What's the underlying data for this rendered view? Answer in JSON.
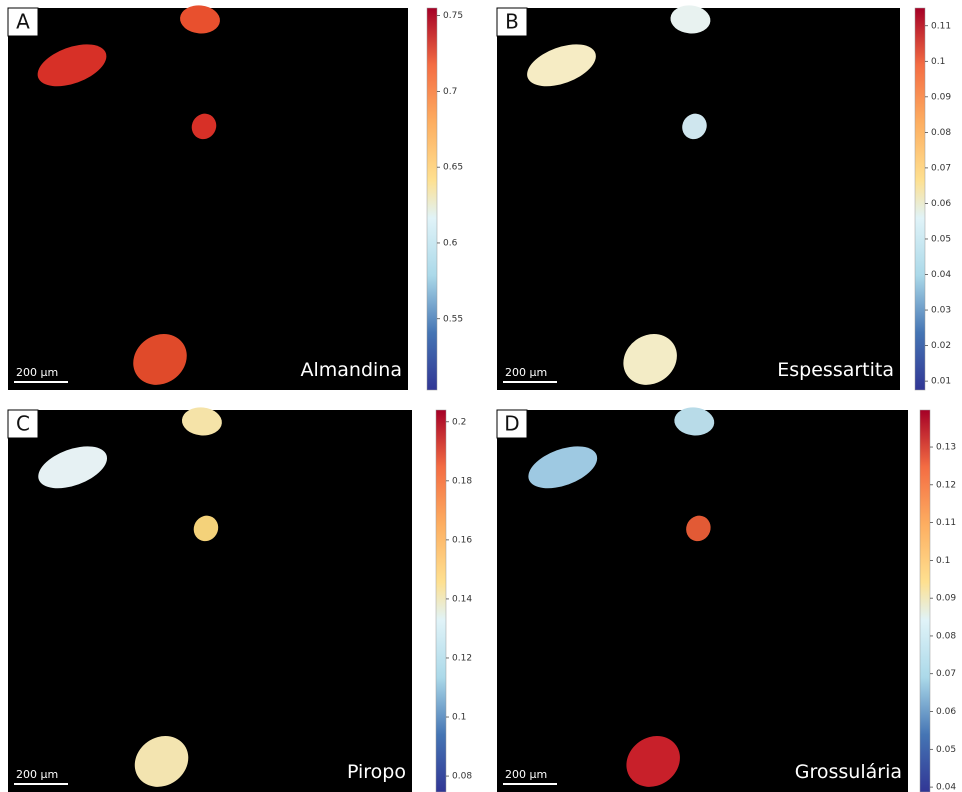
{
  "panels": [
    {
      "letter": "A",
      "mineral": "Almandina",
      "scale_bar": "200 µm",
      "colorbar": {
        "lim": [
          0.503,
          0.755
        ],
        "ticks": [
          0.55,
          0.6,
          0.65,
          0.7,
          0.75
        ]
      }
    },
    {
      "letter": "B",
      "mineral": "Espessartita",
      "scale_bar": "200 µm",
      "colorbar": {
        "lim": [
          0.0075,
          0.115
        ],
        "ticks": [
          0.01,
          0.02,
          0.03,
          0.04,
          0.05,
          0.06,
          0.07,
          0.08,
          0.09,
          0.1,
          0.11
        ]
      }
    },
    {
      "letter": "C",
      "mineral": "Piropo",
      "scale_bar": "200 µm",
      "colorbar": {
        "lim": [
          0.0746,
          0.204
        ],
        "ticks": [
          0.08,
          0.1,
          0.12,
          0.14,
          0.16,
          0.18,
          0.2
        ]
      }
    },
    {
      "letter": "D",
      "mineral": "Grossulária",
      "scale_bar": "200 µm",
      "colorbar": {
        "lim": [
          0.0387,
          0.1398
        ],
        "ticks": [
          0.04,
          0.05,
          0.06,
          0.07,
          0.08,
          0.09,
          0.1,
          0.11,
          0.12,
          0.13
        ]
      }
    }
  ]
}
